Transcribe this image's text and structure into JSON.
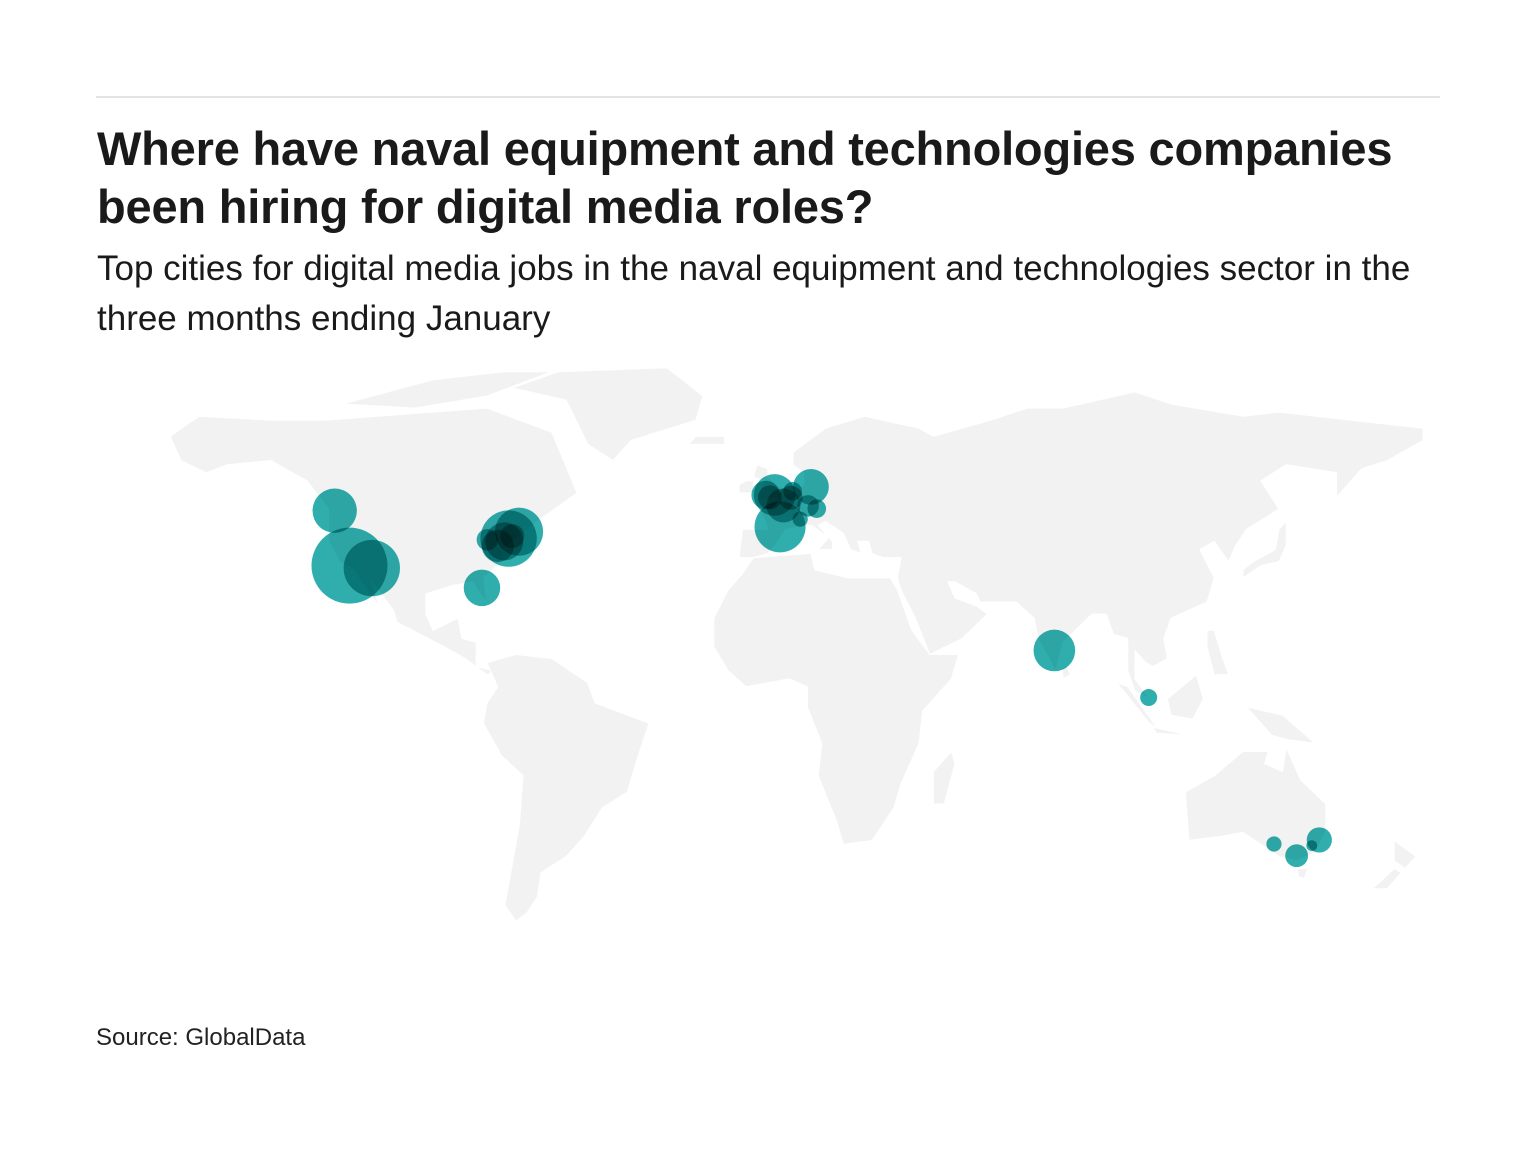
{
  "header": {
    "title": "Where have naval equipment and technologies companies been hiring for digital media roles?",
    "subtitle": "Top cities for digital media jobs in the naval equipment and technologies sector in the three months ending January"
  },
  "footer": {
    "source": "Source: GlobalData"
  },
  "colors": {
    "land": "#f2f2f2",
    "border": "#ffffff",
    "bubble": "#1aa5a5",
    "background": "#ffffff"
  },
  "chart_data": {
    "type": "bubble-map",
    "projection": "world",
    "legend": "none",
    "points": [
      {
        "lon": -118.2,
        "lat": 34.0,
        "value": 100
      },
      {
        "lon": -112.0,
        "lat": 33.4,
        "value": 55
      },
      {
        "lon": -122.3,
        "lat": 47.6,
        "value": 34
      },
      {
        "lon": -81.4,
        "lat": 28.5,
        "value": 23
      },
      {
        "lon": -74.0,
        "lat": 40.7,
        "value": 55
      },
      {
        "lon": -71.1,
        "lat": 42.4,
        "value": 40
      },
      {
        "lon": -75.2,
        "lat": 40.0,
        "value": 25
      },
      {
        "lon": -77.0,
        "lat": 38.9,
        "value": 18
      },
      {
        "lon": -79.9,
        "lat": 40.4,
        "value": 8
      },
      {
        "lon": -73.0,
        "lat": 41.3,
        "value": 10
      },
      {
        "lon": -0.1,
        "lat": 51.5,
        "value": 30
      },
      {
        "lon": -2.6,
        "lat": 51.5,
        "value": 14
      },
      {
        "lon": -1.4,
        "lat": 50.9,
        "value": 10
      },
      {
        "lon": 1.4,
        "lat": 43.6,
        "value": 45
      },
      {
        "lon": 2.35,
        "lat": 48.9,
        "value": 20
      },
      {
        "lon": 4.35,
        "lat": 50.8,
        "value": 10
      },
      {
        "lon": 4.9,
        "lat": 52.4,
        "value": 6
      },
      {
        "lon": 10.0,
        "lat": 53.5,
        "value": 22
      },
      {
        "lon": 9.2,
        "lat": 48.8,
        "value": 8
      },
      {
        "lon": 11.6,
        "lat": 48.1,
        "value": 6
      },
      {
        "lon": 7.0,
        "lat": 45.5,
        "value": 4
      },
      {
        "lon": 77.6,
        "lat": 13.0,
        "value": 30
      },
      {
        "lon": 103.8,
        "lat": 1.35,
        "value": 5
      },
      {
        "lon": 151.2,
        "lat": -33.9,
        "value": 11
      },
      {
        "lon": 144.9,
        "lat": -37.8,
        "value": 9
      },
      {
        "lon": 138.6,
        "lat": -34.9,
        "value": 4
      },
      {
        "lon": 149.1,
        "lat": -35.3,
        "value": 2
      }
    ]
  }
}
